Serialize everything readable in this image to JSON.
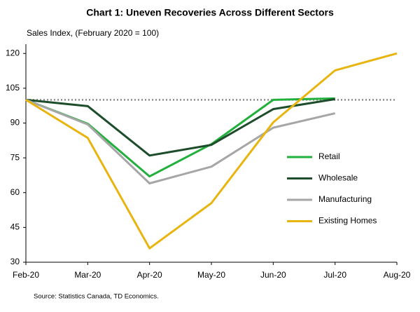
{
  "chart_data": {
    "type": "line",
    "title": "Chart 1: Uneven Recoveries Across Different Sectors",
    "y_label": "Sales Index, (February 2020 = 100)",
    "source": "Source: Statistics Canada, TD Economics.",
    "categories": [
      "Feb-20",
      "Mar-20",
      "Apr-20",
      "May-20",
      "Jun-20",
      "Jul-20",
      "Aug-20"
    ],
    "series": [
      {
        "name": "Retail",
        "color": "#22b03c",
        "values": [
          100,
          89.7,
          67,
          80.9,
          100,
          100.6,
          null
        ]
      },
      {
        "name": "Wholesale",
        "color": "#1e4d2b",
        "values": [
          100,
          97.3,
          76,
          80.6,
          96,
          100.3,
          null
        ]
      },
      {
        "name": "Manufacturing",
        "color": "#a6a6a6",
        "values": [
          100,
          89.4,
          64,
          71.2,
          88,
          94.2,
          null
        ]
      },
      {
        "name": "Existing Homes",
        "color": "#e8b510",
        "values": [
          100,
          83.6,
          36,
          55.5,
          90.3,
          112.7,
          120
        ]
      }
    ],
    "reference_line": 100,
    "ylim": [
      30,
      124
    ],
    "yticks": [
      30,
      45,
      60,
      75,
      90,
      105,
      120
    ],
    "legend": "right"
  }
}
